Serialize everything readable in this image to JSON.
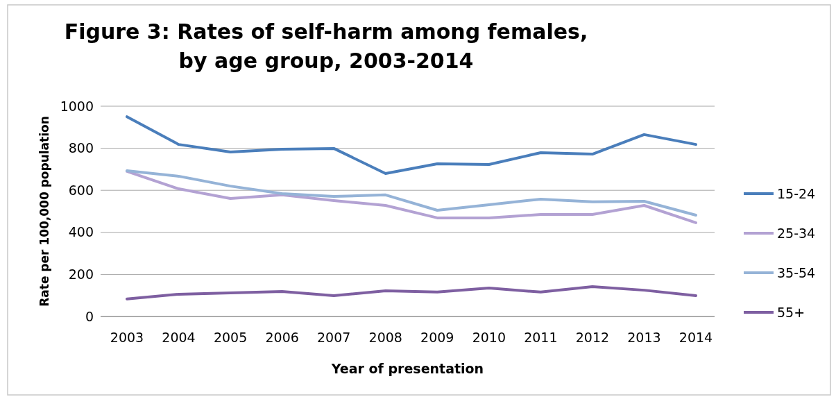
{
  "chart_data": {
    "type": "line",
    "title": "Figure 3: Rates of self-harm among females,\nby age group, 2003-2014",
    "xlabel": "Year of presentation",
    "ylabel": "Rate per 100,000 population",
    "categories": [
      "2003",
      "2004",
      "2005",
      "2006",
      "2007",
      "2008",
      "2009",
      "2010",
      "2011",
      "2012",
      "2013",
      "2014"
    ],
    "series": [
      {
        "name": "15-24",
        "color": "#4a7ebb",
        "values": [
          950,
          818,
          782,
          795,
          799,
          680,
          726,
          723,
          779,
          772,
          865,
          818
        ]
      },
      {
        "name": "25-34",
        "color": "#b3a2d3",
        "values": [
          690,
          607,
          561,
          578,
          551,
          528,
          469,
          469,
          485,
          485,
          528,
          446
        ]
      },
      {
        "name": "35-54",
        "color": "#95b3d7",
        "values": [
          693,
          667,
          620,
          584,
          571,
          578,
          505,
          531,
          558,
          545,
          548,
          482
        ]
      },
      {
        "name": "55+",
        "color": "#7e5fa1",
        "values": [
          83,
          106,
          112,
          119,
          99,
          122,
          116,
          135,
          116,
          142,
          125,
          99
        ]
      }
    ],
    "ylim": [
      0,
      1000
    ],
    "yticks": [
      0,
      200,
      400,
      600,
      800,
      1000
    ],
    "grid": "y",
    "legend": "right",
    "marker": "none",
    "line_style": "solid"
  }
}
